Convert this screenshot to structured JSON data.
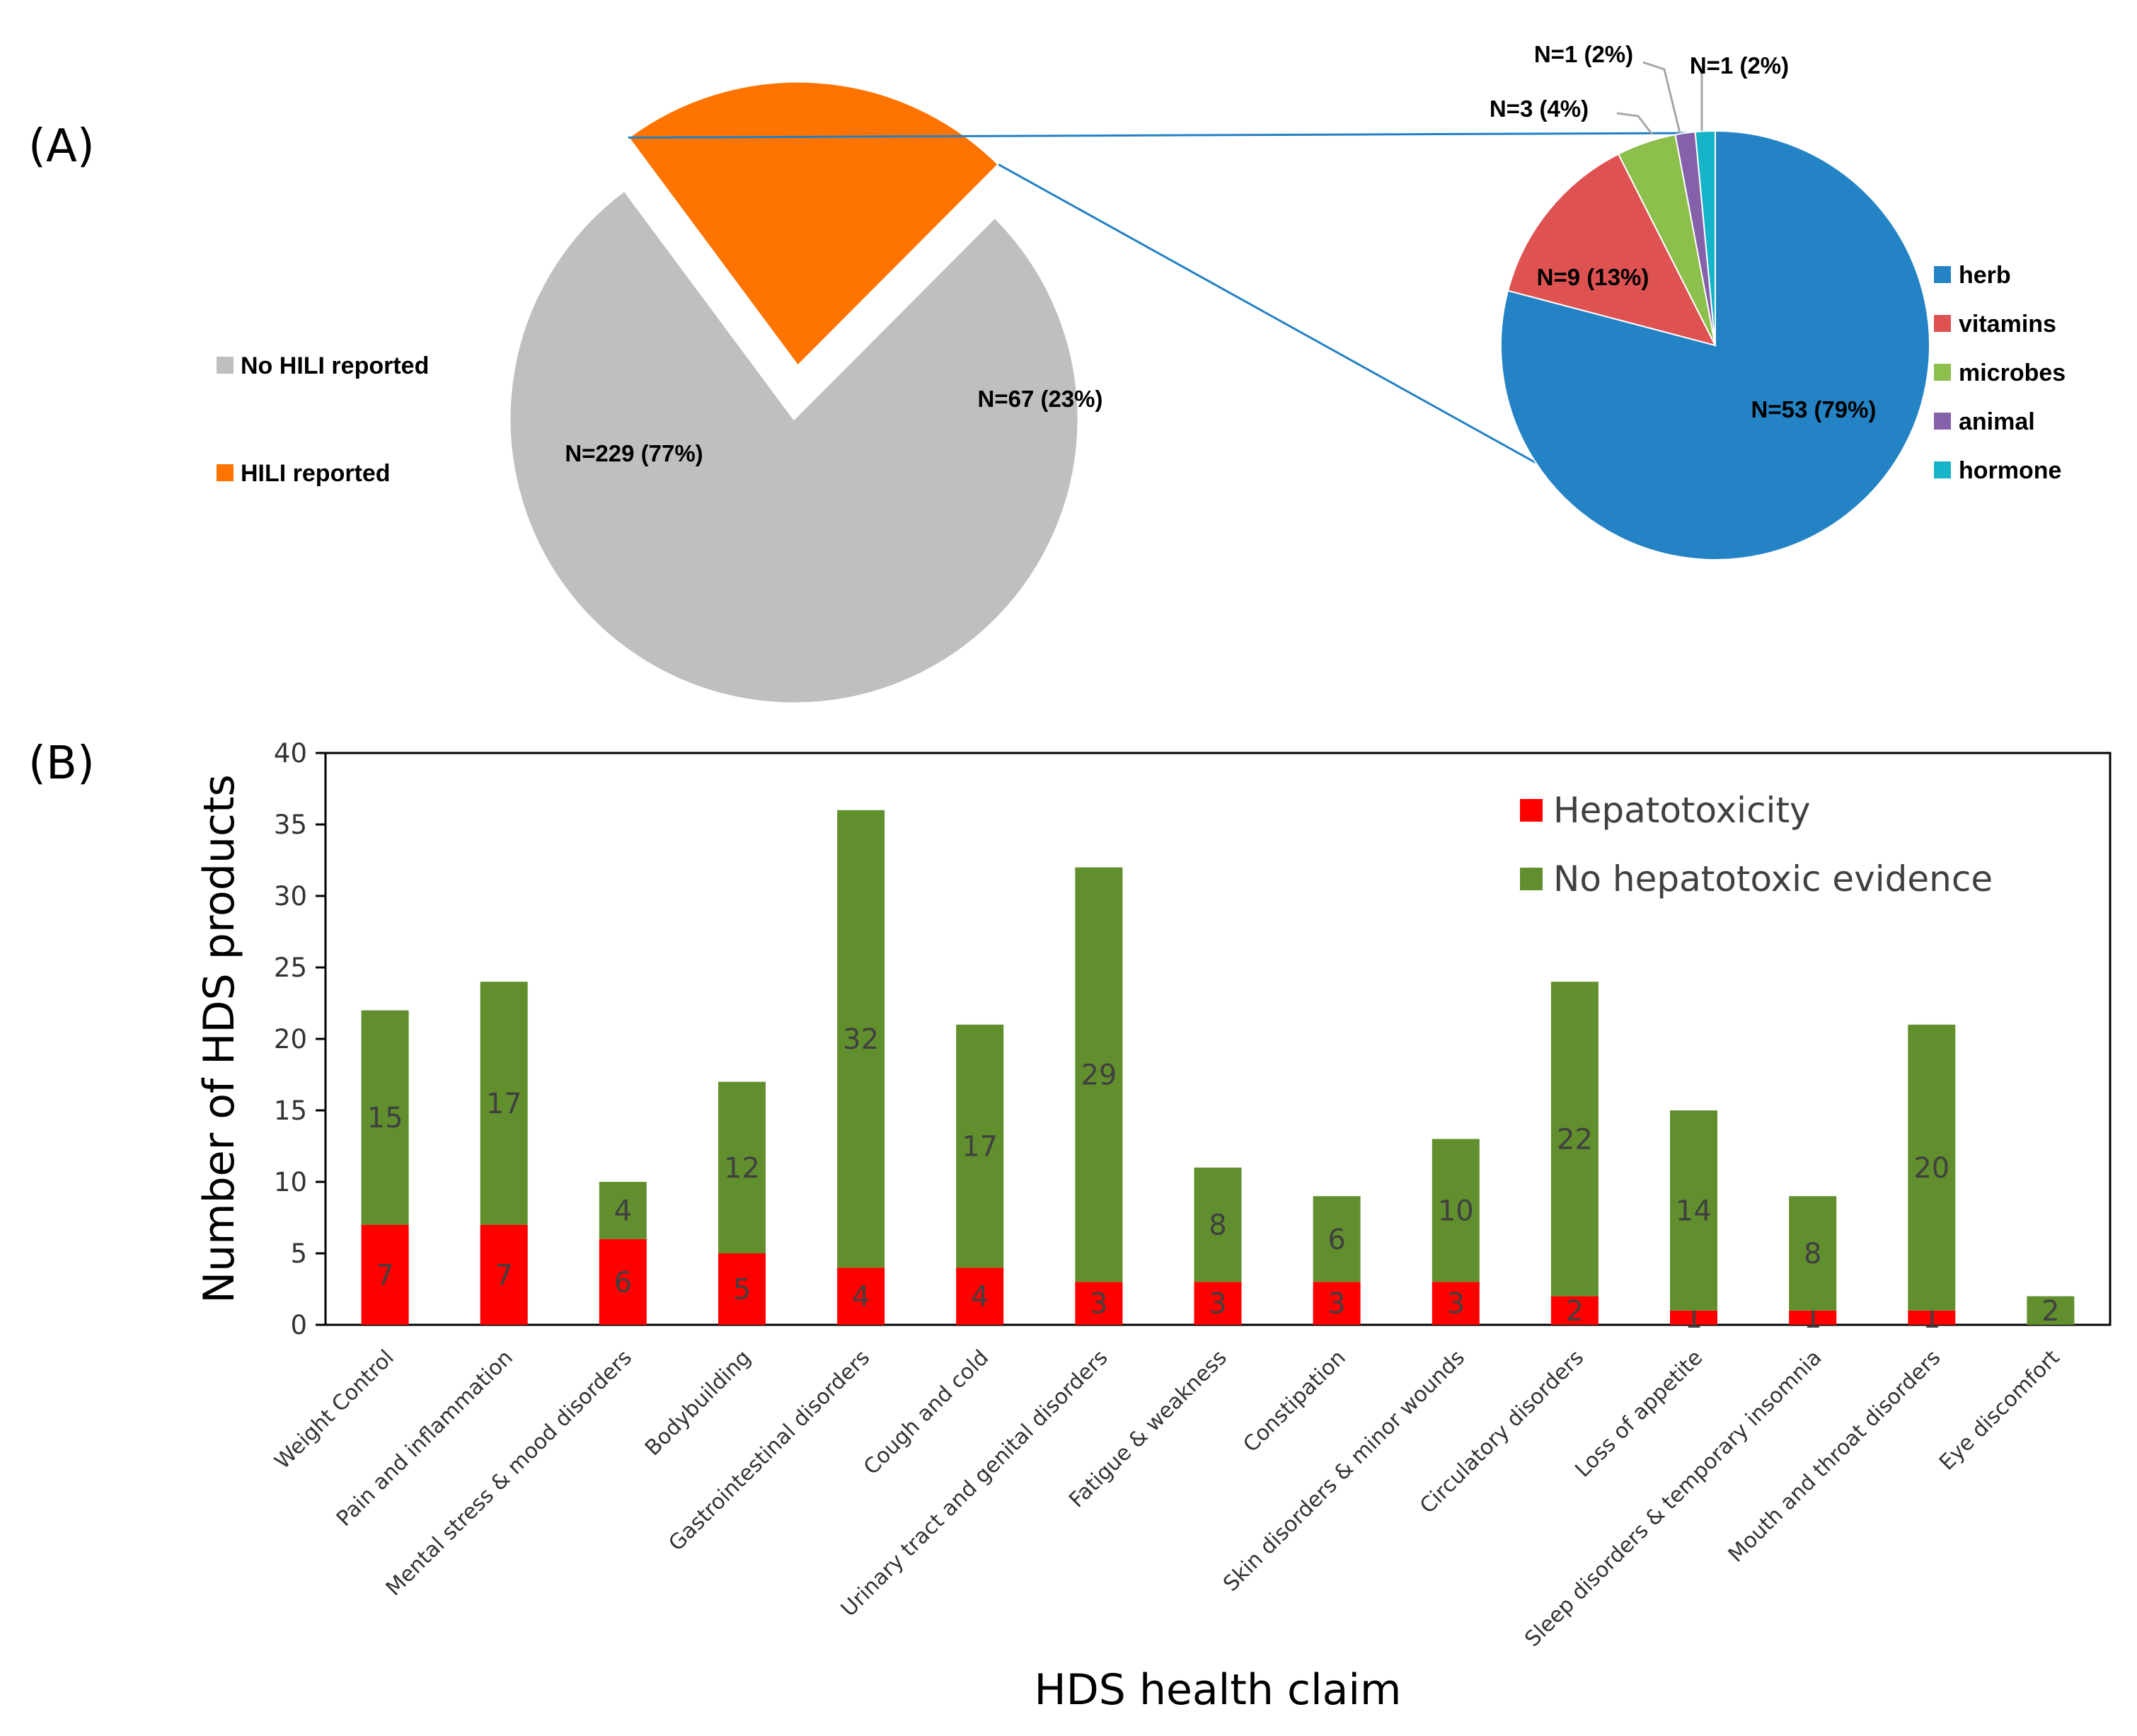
{
  "colors": {
    "no_hili": "#bfbfbf",
    "hili": "#ff7300",
    "herb": "#2483c5",
    "vitamins": "#de5252",
    "microbes": "#8cbf4c",
    "animal": "#8461a9",
    "hormone": "#16b4c9",
    "connector": "#2380c4",
    "hepatotoxicity": "#ff0000",
    "no_hepatotoxic": "#628f2e"
  },
  "chart_data": [
    {
      "id": "A-main",
      "panel_label": "(A)",
      "type": "pie",
      "slices": [
        {
          "name": "No HILI reported",
          "value": 229,
          "label": "N=229 (77%)",
          "color_key": "no_hili"
        },
        {
          "name": "HILI reported",
          "value": 67,
          "label": "N=67 (23%)",
          "color_key": "hili",
          "exploded": true
        }
      ],
      "legend": [
        "No HILI reported",
        "HILI reported"
      ],
      "legend_position": "left"
    },
    {
      "id": "A-breakdown",
      "type": "pie",
      "slices": [
        {
          "name": "herb",
          "value": 53,
          "label": "N=53 (79%)",
          "color_key": "herb"
        },
        {
          "name": "vitamins",
          "value": 9,
          "label": "N=9 (13%)",
          "color_key": "vitamins"
        },
        {
          "name": "microbes",
          "value": 3,
          "label": "N=3 (4%)",
          "color_key": "microbes"
        },
        {
          "name": "animal",
          "value": 1,
          "label": "N=1 (2%)",
          "color_key": "animal"
        },
        {
          "name": "hormone",
          "value": 1,
          "label": "N=1 (2%)",
          "color_key": "hormone"
        }
      ],
      "legend": [
        "herb",
        "vitamins",
        "microbes",
        "animal",
        "hormone"
      ],
      "legend_position": "right"
    },
    {
      "id": "B",
      "panel_label": "(B)",
      "type": "bar",
      "stacked": true,
      "categories": [
        "Weight Control",
        "Pain and inflammation",
        "Mental stress & mood disorders",
        "Bodybuilding",
        "Gastrointestinal disorders",
        "Cough and cold",
        "Urinary tract and genital disorders",
        "Fatigue & weakness",
        "Constipation",
        "Skin disorders & minor wounds",
        "Circulatory disorders",
        "Loss of appetite",
        "Sleep disorders & temporary insomnia",
        "Mouth and throat disorders",
        "Eye discomfort"
      ],
      "series": [
        {
          "name": "Hepatotoxicity",
          "color_key": "hepatotoxicity",
          "values": [
            7,
            7,
            6,
            5,
            4,
            4,
            3,
            3,
            3,
            3,
            2,
            1,
            1,
            1,
            0
          ]
        },
        {
          "name": "No hepatotoxic evidence",
          "color_key": "no_hepatotoxic",
          "values": [
            15,
            17,
            4,
            12,
            32,
            17,
            29,
            8,
            6,
            10,
            22,
            14,
            8,
            20,
            2
          ]
        }
      ],
      "value_labels": [
        [
          "7",
          "7",
          "6",
          "5",
          "4",
          "4",
          "3",
          "3",
          "3",
          "3",
          "2",
          "1",
          "1",
          "1",
          null
        ],
        [
          "15",
          "17",
          "4",
          "12",
          "32",
          "17",
          "29",
          "8",
          "6",
          "10",
          "22",
          "14",
          "8",
          "20",
          "2"
        ]
      ],
      "yticks": [
        "0",
        "5",
        "10",
        "15",
        "20",
        "25",
        "30",
        "35",
        "40"
      ],
      "ylim": [
        0,
        40
      ],
      "xlabel": "HDS health claim",
      "ylabel": "Number of HDS products",
      "legend_position": "top-right",
      "grid": false
    }
  ]
}
